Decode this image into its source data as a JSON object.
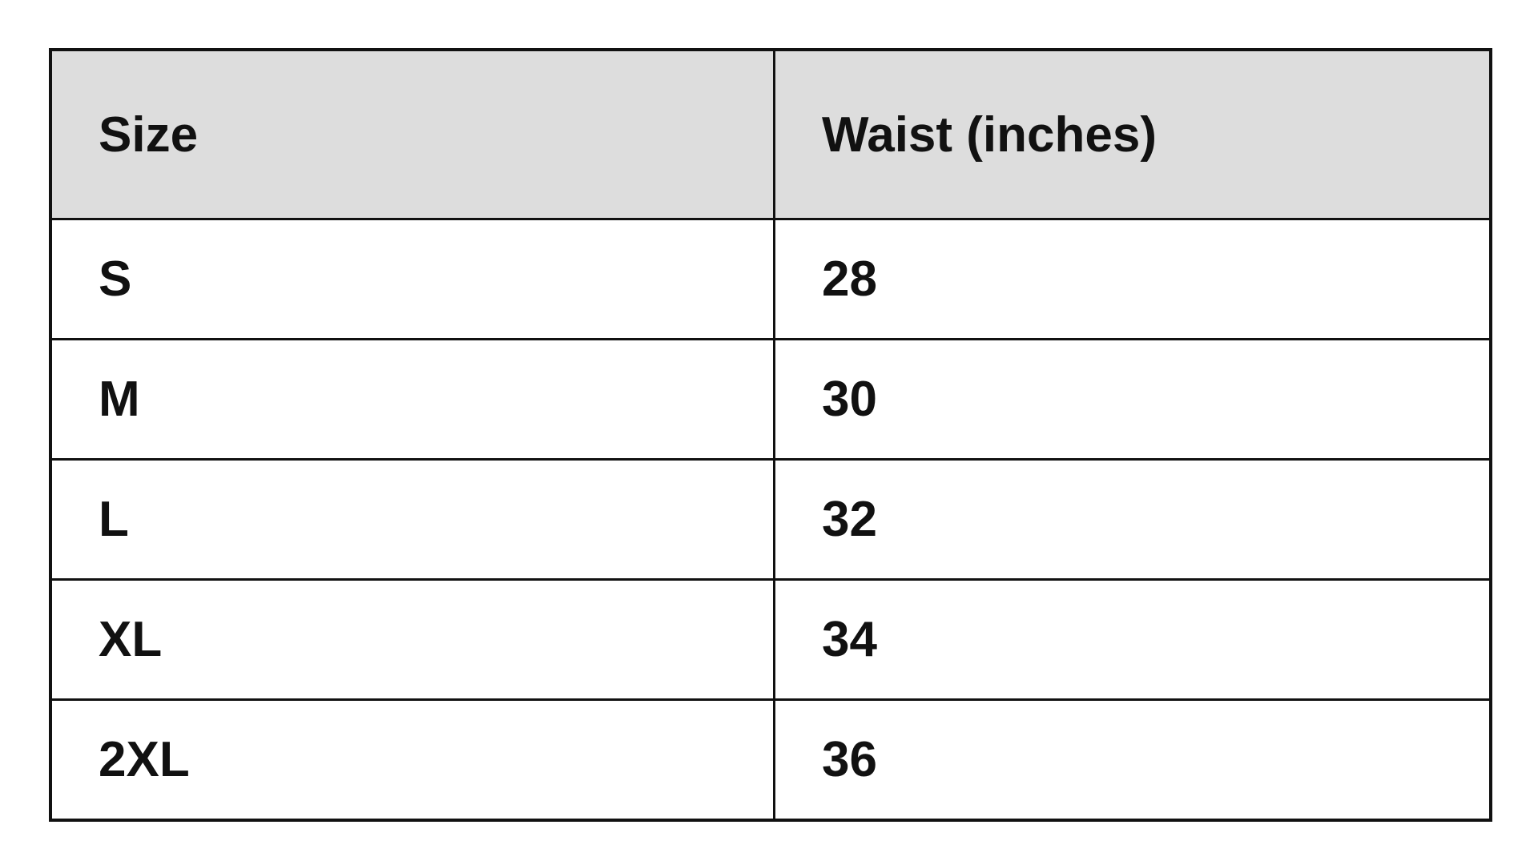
{
  "table": {
    "headers": [
      "Size",
      "Waist (inches)"
    ],
    "rows": [
      [
        "S",
        "28"
      ],
      [
        "M",
        "30"
      ],
      [
        "L",
        "32"
      ],
      [
        "XL",
        "34"
      ],
      [
        "2XL",
        "36"
      ]
    ]
  }
}
